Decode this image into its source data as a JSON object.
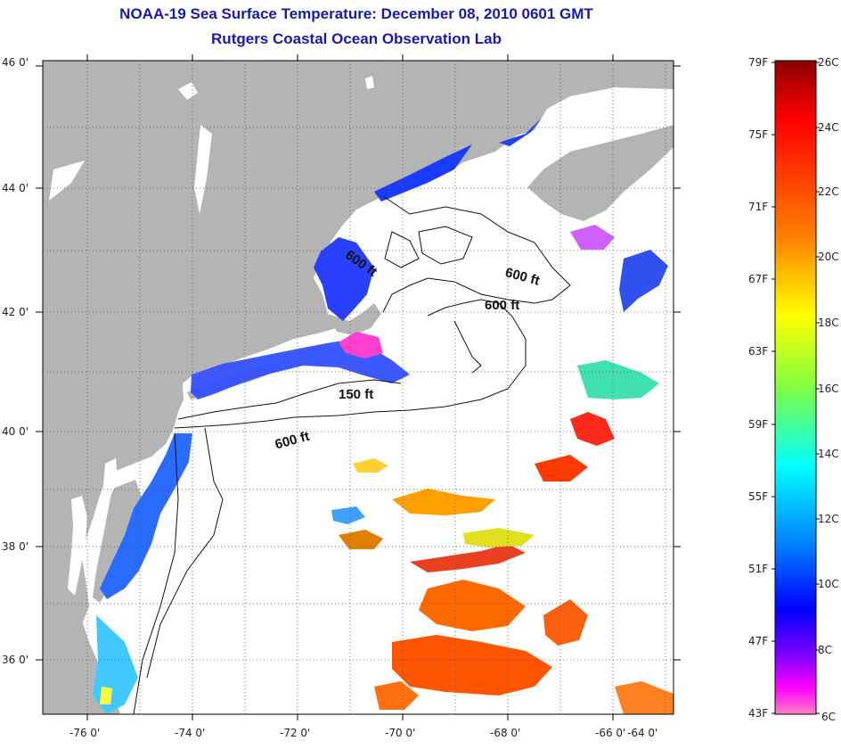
{
  "map": {
    "title": "NOAA-19 Sea Surface Temperature:  December 08, 2010 0601 GMT",
    "subtitle": "Rutgers Coastal Ocean Observation Lab",
    "latitude_labels": [
      "46 0'",
      "44 0'",
      "42 0'",
      "40 0'",
      "38 0'",
      "36 0'"
    ],
    "longitude_labels": [
      "-76 0'",
      "-74 0'",
      "-72 0'",
      "-70 0'",
      "-68 0'",
      "-66 0'",
      "-64 0'"
    ],
    "isobath_labels": [
      {
        "text": "600 ft"
      },
      {
        "text": "600 ft"
      },
      {
        "text": "600 ft"
      },
      {
        "text": "150 ft"
      },
      {
        "text": "600 ft"
      }
    ],
    "colors": {
      "land": "#b4b4b4",
      "ocean_no_data": "#ffffff",
      "title": "#1a1aa6"
    }
  },
  "colorbar": {
    "fahrenheit_labels": [
      "79F",
      "75F",
      "71F",
      "67F",
      "63F",
      "59F",
      "55F",
      "51F",
      "47F",
      "43F"
    ],
    "celsius_labels": [
      "26C",
      "24C",
      "22C",
      "20C",
      "18C",
      "16C",
      "14C",
      "12C",
      "10C",
      "8C",
      "6C"
    ],
    "gradient_colors": [
      "#8b0000",
      "#ff0000",
      "#ff8000",
      "#ffff00",
      "#80ff40",
      "#00ffff",
      "#0080ff",
      "#0000ff",
      "#8000ff",
      "#ff00ff",
      "#ff80c0"
    ]
  }
}
